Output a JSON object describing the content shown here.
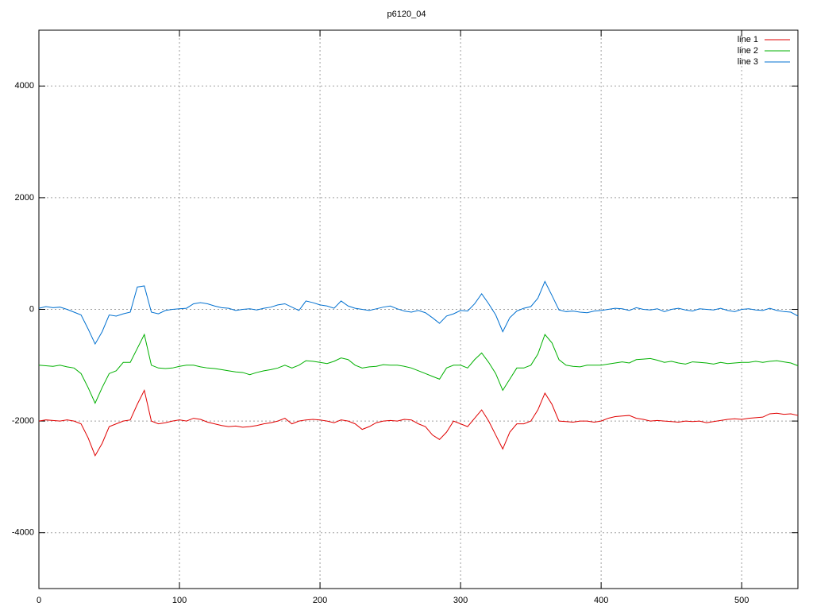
{
  "chart_data": {
    "type": "line",
    "title": "p6120_04",
    "x": [
      0,
      5,
      10,
      15,
      20,
      25,
      30,
      35,
      40,
      45,
      50,
      55,
      60,
      65,
      70,
      75,
      80,
      85,
      90,
      95,
      100,
      105,
      110,
      115,
      120,
      125,
      130,
      135,
      140,
      145,
      150,
      155,
      160,
      165,
      170,
      175,
      180,
      185,
      190,
      195,
      200,
      205,
      210,
      215,
      220,
      225,
      230,
      235,
      240,
      245,
      250,
      255,
      260,
      265,
      270,
      275,
      280,
      285,
      290,
      295,
      300,
      305,
      310,
      315,
      320,
      325,
      330,
      335,
      340,
      345,
      350,
      355,
      360,
      365,
      370,
      375,
      380,
      385,
      390,
      395,
      400,
      405,
      410,
      415,
      420,
      425,
      430,
      435,
      440,
      445,
      450,
      455,
      460,
      465,
      470,
      475,
      480,
      485,
      490,
      495,
      500,
      505,
      510,
      515,
      520,
      525,
      530,
      535,
      540
    ],
    "series": [
      {
        "name": "line 1",
        "color": "#e00000",
        "values": [
          -2000,
          -1980,
          -1990,
          -2000,
          -1980,
          -2000,
          -2050,
          -2300,
          -2620,
          -2400,
          -2100,
          -2050,
          -2000,
          -1980,
          -1700,
          -1450,
          -2000,
          -2050,
          -2030,
          -2000,
          -1980,
          -2000,
          -1950,
          -1970,
          -2020,
          -2050,
          -2080,
          -2100,
          -2090,
          -2110,
          -2100,
          -2080,
          -2050,
          -2030,
          -2000,
          -1950,
          -2050,
          -2000,
          -1980,
          -1970,
          -1980,
          -2000,
          -2030,
          -1980,
          -2000,
          -2050,
          -2150,
          -2100,
          -2030,
          -2000,
          -1990,
          -2000,
          -1970,
          -1980,
          -2050,
          -2100,
          -2250,
          -2330,
          -2200,
          -2000,
          -2050,
          -2100,
          -1950,
          -1800,
          -2000,
          -2250,
          -2500,
          -2200,
          -2050,
          -2050,
          -2000,
          -1800,
          -1500,
          -1700,
          -2000,
          -2010,
          -2020,
          -2000,
          -2000,
          -2020,
          -2000,
          -1950,
          -1920,
          -1910,
          -1900,
          -1950,
          -1970,
          -2000,
          -1990,
          -2000,
          -2010,
          -2020,
          -2000,
          -2010,
          -2000,
          -2030,
          -2010,
          -1990,
          -1970,
          -1960,
          -1970,
          -1950,
          -1940,
          -1930,
          -1870,
          -1860,
          -1880,
          -1870,
          -1900
        ]
      },
      {
        "name": "line 2",
        "color": "#00b000",
        "values": [
          -1000,
          -1010,
          -1020,
          -1000,
          -1030,
          -1050,
          -1150,
          -1400,
          -1680,
          -1400,
          -1150,
          -1100,
          -950,
          -950,
          -700,
          -450,
          -1000,
          -1050,
          -1060,
          -1050,
          -1020,
          -1000,
          -1000,
          -1030,
          -1050,
          -1060,
          -1080,
          -1100,
          -1120,
          -1130,
          -1170,
          -1130,
          -1100,
          -1080,
          -1050,
          -1000,
          -1050,
          -1000,
          -920,
          -930,
          -950,
          -970,
          -930,
          -870,
          -900,
          -1000,
          -1050,
          -1030,
          -1020,
          -990,
          -1000,
          -1000,
          -1020,
          -1050,
          -1100,
          -1150,
          -1200,
          -1250,
          -1050,
          -1000,
          -1000,
          -1050,
          -900,
          -780,
          -950,
          -1150,
          -1450,
          -1250,
          -1050,
          -1050,
          -1000,
          -800,
          -450,
          -600,
          -900,
          -1000,
          -1020,
          -1030,
          -1000,
          -1000,
          -1000,
          -980,
          -960,
          -940,
          -960,
          -900,
          -890,
          -880,
          -910,
          -950,
          -930,
          -960,
          -980,
          -940,
          -950,
          -960,
          -980,
          -950,
          -970,
          -960,
          -950,
          -950,
          -930,
          -950,
          -930,
          -920,
          -940,
          -960,
          -1010
        ]
      },
      {
        "name": "line 3",
        "color": "#0070d0",
        "values": [
          20,
          50,
          30,
          40,
          0,
          -50,
          -100,
          -350,
          -620,
          -400,
          -100,
          -120,
          -80,
          -50,
          400,
          420,
          -50,
          -80,
          -20,
          0,
          10,
          20,
          100,
          120,
          100,
          60,
          30,
          20,
          -20,
          0,
          10,
          -10,
          20,
          40,
          80,
          100,
          40,
          -20,
          150,
          120,
          80,
          60,
          20,
          150,
          60,
          20,
          0,
          -20,
          10,
          40,
          60,
          10,
          -30,
          -50,
          -20,
          -60,
          -150,
          -250,
          -120,
          -80,
          -20,
          -30,
          100,
          280,
          100,
          -100,
          -400,
          -150,
          -30,
          20,
          50,
          200,
          500,
          250,
          -10,
          -40,
          -30,
          -50,
          -60,
          -30,
          -20,
          0,
          20,
          10,
          -20,
          30,
          0,
          -10,
          10,
          -40,
          0,
          20,
          -10,
          -30,
          10,
          0,
          -10,
          20,
          -20,
          -40,
          0,
          10,
          -10,
          -20,
          20,
          -20,
          -40,
          -50,
          -120
        ]
      }
    ],
    "xlim": [
      0,
      540
    ],
    "xticks": [
      0,
      100,
      200,
      300,
      400,
      500
    ],
    "ylim": [
      -5000,
      5000
    ],
    "yticks": [
      -4000,
      -2000,
      0,
      2000,
      4000
    ],
    "grid": true,
    "legend": "upper-right"
  }
}
